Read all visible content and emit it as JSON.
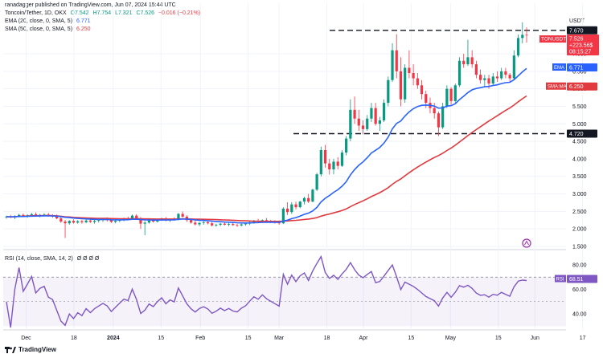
{
  "header": {
    "byline": "ranadagger published on TradingView.com, Jun 07, 2024 15:44 UTC",
    "symbol": "Toncoin/Tether, 1D, OKX",
    "o": "O7.542",
    "h": "H7.754",
    "l": "L7.321",
    "c": "C7.526",
    "chg": "−0.016 (−0.21%)",
    "ema_label": "EMA (20, close, 0, SMA, 5)",
    "ema_value": "6.771",
    "sma_label": "SMA (50, close, 0, SMA, 5)",
    "sma_value": "6.250",
    "rsi_label": "RSI (14, close, SMA, 14, 2)",
    "rsi_extra": "Ø Ø Ø Ø",
    "currency": "USDT"
  },
  "price_badges": {
    "symbol_tag": "TONUSDT",
    "price": "7.526",
    "change": "+223.56$",
    "countdown": "08:15:27",
    "resistance": "7.670",
    "support": "4.720",
    "ema_tag": "EMA",
    "ema_value": "6.771",
    "sma_tag": "SMA:MA",
    "sma_value": "6.250",
    "rsi_tag": "RSI",
    "rsi_value": "68.51"
  },
  "footer": {
    "brand": "TradingView"
  },
  "colors": {
    "up": "#089981",
    "down": "#f23645",
    "ema": "#2962ff",
    "sma": "#e03a3e",
    "rsi": "#7e57c2",
    "levels": "#131722"
  },
  "chart_data": {
    "type": "candlestick",
    "price_axis_ticks": [
      "1.500",
      "2.000",
      "2.500",
      "3.000",
      "3.500",
      "4.000",
      "4.500",
      "5.000",
      "5.500",
      "6.000",
      "6.500",
      "7.000"
    ],
    "time_axis_labels": [
      "Dec",
      "18",
      "2024",
      "15",
      "Feb",
      "15",
      "Mar",
      "18",
      "Apr",
      "15",
      "May",
      "15",
      "Jun",
      "17"
    ],
    "rsi_axis_ticks": [
      "80.00",
      "60.00",
      "40.00"
    ],
    "rsi_band": [
      30,
      70
    ],
    "horizontal_levels": [
      7.67,
      4.72
    ],
    "last_price": 7.526,
    "candles": [
      [
        2.33,
        2.38,
        2.29,
        2.35
      ],
      [
        2.35,
        2.4,
        2.31,
        2.33
      ],
      [
        2.33,
        2.39,
        2.28,
        2.36
      ],
      [
        2.36,
        2.43,
        2.33,
        2.4
      ],
      [
        2.4,
        2.44,
        2.34,
        2.37
      ],
      [
        2.37,
        2.42,
        2.32,
        2.39
      ],
      [
        2.39,
        2.46,
        2.35,
        2.42
      ],
      [
        2.42,
        2.47,
        2.36,
        2.38
      ],
      [
        2.38,
        2.43,
        2.33,
        2.4
      ],
      [
        2.4,
        2.45,
        2.36,
        2.41
      ],
      [
        2.41,
        2.46,
        2.35,
        2.37
      ],
      [
        2.37,
        2.42,
        2.32,
        2.36
      ],
      [
        2.36,
        2.41,
        2.28,
        2.3
      ],
      [
        2.3,
        2.36,
        2.17,
        2.21
      ],
      [
        2.21,
        2.26,
        1.74,
        2.16
      ],
      [
        2.16,
        2.25,
        2.12,
        2.23
      ],
      [
        2.23,
        2.27,
        2.15,
        2.18
      ],
      [
        2.18,
        2.25,
        2.15,
        2.22
      ],
      [
        2.22,
        2.26,
        2.15,
        2.19
      ],
      [
        2.19,
        2.27,
        2.16,
        2.24
      ],
      [
        2.24,
        2.29,
        2.17,
        2.2
      ],
      [
        2.2,
        2.26,
        2.15,
        2.23
      ],
      [
        2.23,
        2.29,
        2.18,
        2.25
      ],
      [
        2.25,
        2.3,
        2.2,
        2.27
      ],
      [
        2.27,
        2.33,
        2.21,
        2.25
      ],
      [
        2.25,
        2.29,
        2.17,
        2.2
      ],
      [
        2.2,
        2.27,
        2.16,
        2.23
      ],
      [
        2.23,
        2.3,
        2.19,
        2.26
      ],
      [
        2.26,
        2.32,
        2.22,
        2.29
      ],
      [
        2.29,
        2.35,
        2.25,
        2.28
      ],
      [
        2.28,
        2.41,
        2.26,
        2.38
      ],
      [
        2.38,
        2.42,
        2.29,
        2.3
      ],
      [
        2.3,
        2.34,
        2.0,
        2.15
      ],
      [
        2.15,
        2.22,
        1.82,
        2.18
      ],
      [
        2.18,
        2.27,
        2.15,
        2.24
      ],
      [
        2.24,
        2.29,
        2.18,
        2.21
      ],
      [
        2.21,
        2.28,
        2.18,
        2.26
      ],
      [
        2.26,
        2.32,
        2.23,
        2.3
      ],
      [
        2.3,
        2.34,
        2.22,
        2.24
      ],
      [
        2.24,
        2.3,
        2.2,
        2.28
      ],
      [
        2.28,
        2.33,
        2.24,
        2.26
      ],
      [
        2.26,
        2.45,
        2.24,
        2.43
      ],
      [
        2.43,
        2.5,
        2.32,
        2.35
      ],
      [
        2.35,
        2.39,
        2.2,
        2.25
      ],
      [
        2.25,
        2.3,
        2.15,
        2.18
      ],
      [
        2.18,
        2.24,
        2.1,
        2.13
      ],
      [
        2.13,
        2.2,
        2.08,
        2.17
      ],
      [
        2.17,
        2.23,
        2.12,
        2.19
      ],
      [
        2.19,
        2.24,
        2.13,
        2.16
      ],
      [
        2.16,
        2.2,
        2.07,
        2.1
      ],
      [
        2.1,
        2.15,
        2.06,
        2.12
      ],
      [
        2.12,
        2.17,
        2.08,
        2.15
      ],
      [
        2.15,
        2.19,
        2.1,
        2.12
      ],
      [
        2.12,
        2.17,
        2.08,
        2.14
      ],
      [
        2.14,
        2.18,
        2.09,
        2.11
      ],
      [
        2.11,
        2.15,
        2.06,
        2.1
      ],
      [
        2.1,
        2.16,
        2.07,
        2.13
      ],
      [
        2.13,
        2.18,
        2.09,
        2.15
      ],
      [
        2.15,
        2.22,
        2.11,
        2.19
      ],
      [
        2.19,
        2.26,
        2.15,
        2.23
      ],
      [
        2.23,
        2.29,
        2.18,
        2.21
      ],
      [
        2.21,
        2.27,
        2.17,
        2.25
      ],
      [
        2.25,
        2.31,
        2.2,
        2.22
      ],
      [
        2.22,
        2.26,
        2.17,
        2.2
      ],
      [
        2.2,
        2.25,
        2.15,
        2.18
      ],
      [
        2.18,
        2.24,
        2.12,
        2.16
      ],
      [
        2.16,
        2.62,
        2.14,
        2.58
      ],
      [
        2.58,
        2.76,
        2.4,
        2.48
      ],
      [
        2.48,
        2.76,
        2.43,
        2.7
      ],
      [
        2.7,
        2.78,
        2.56,
        2.62
      ],
      [
        2.62,
        2.8,
        2.59,
        2.78
      ],
      [
        2.78,
        2.92,
        2.7,
        2.88
      ],
      [
        2.88,
        3.0,
        2.74,
        2.78
      ],
      [
        2.78,
        3.15,
        2.76,
        3.12
      ],
      [
        3.12,
        3.6,
        3.08,
        3.56
      ],
      [
        3.56,
        4.35,
        3.5,
        4.25
      ],
      [
        4.25,
        4.4,
        3.75,
        3.87
      ],
      [
        3.87,
        4.0,
        3.55,
        3.7
      ],
      [
        3.7,
        4.0,
        3.56,
        3.92
      ],
      [
        3.92,
        4.05,
        3.7,
        3.8
      ],
      [
        3.8,
        4.25,
        3.77,
        4.18
      ],
      [
        4.18,
        4.65,
        4.1,
        4.58
      ],
      [
        4.58,
        5.7,
        4.5,
        5.4
      ],
      [
        5.4,
        5.78,
        5.0,
        5.15
      ],
      [
        5.15,
        5.4,
        4.8,
        4.95
      ],
      [
        4.95,
        5.1,
        4.7,
        4.85
      ],
      [
        4.85,
        5.25,
        4.8,
        5.15
      ],
      [
        5.15,
        5.6,
        5.05,
        5.45
      ],
      [
        5.45,
        5.6,
        4.95,
        5.0
      ],
      [
        5.0,
        5.2,
        4.8,
        5.1
      ],
      [
        5.1,
        5.7,
        5.05,
        5.6
      ],
      [
        5.6,
        6.35,
        5.5,
        6.25
      ],
      [
        6.25,
        7.3,
        6.2,
        7.1
      ],
      [
        7.1,
        7.56,
        6.3,
        6.5
      ],
      [
        6.5,
        6.9,
        5.5,
        5.7
      ],
      [
        5.7,
        6.7,
        5.6,
        6.6
      ],
      [
        6.6,
        7.1,
        6.3,
        6.45
      ],
      [
        6.45,
        6.7,
        6.1,
        6.3
      ],
      [
        6.3,
        6.45,
        6.0,
        6.1
      ],
      [
        6.1,
        6.25,
        5.7,
        5.85
      ],
      [
        5.85,
        5.95,
        5.45,
        5.6
      ],
      [
        5.6,
        5.75,
        5.3,
        5.45
      ],
      [
        5.45,
        5.6,
        5.15,
        5.3
      ],
      [
        5.3,
        5.35,
        4.65,
        4.9
      ],
      [
        4.9,
        5.6,
        4.85,
        5.5
      ],
      [
        5.5,
        6.1,
        5.45,
        6.0
      ],
      [
        6.0,
        6.05,
        5.55,
        5.65
      ],
      [
        5.65,
        6.15,
        5.6,
        6.1
      ],
      [
        6.1,
        6.9,
        6.05,
        6.8
      ],
      [
        6.8,
        7.0,
        6.6,
        6.7
      ],
      [
        6.7,
        7.4,
        6.65,
        6.9
      ],
      [
        6.9,
        7.1,
        6.6,
        6.7
      ],
      [
        6.7,
        6.8,
        6.3,
        6.4
      ],
      [
        6.4,
        6.55,
        6.15,
        6.25
      ],
      [
        6.25,
        6.4,
        6.05,
        6.3
      ],
      [
        6.3,
        6.4,
        6.0,
        6.15
      ],
      [
        6.15,
        6.45,
        6.1,
        6.35
      ],
      [
        6.35,
        6.5,
        6.2,
        6.3
      ],
      [
        6.3,
        6.6,
        6.25,
        6.5
      ],
      [
        6.5,
        6.6,
        6.3,
        6.4
      ],
      [
        6.4,
        6.45,
        6.2,
        6.3
      ],
      [
        6.3,
        7.1,
        6.28,
        6.95
      ],
      [
        6.95,
        7.55,
        6.9,
        7.45
      ],
      [
        7.45,
        7.9,
        7.3,
        7.542
      ],
      [
        7.542,
        7.754,
        7.321,
        7.526
      ]
    ]
  }
}
